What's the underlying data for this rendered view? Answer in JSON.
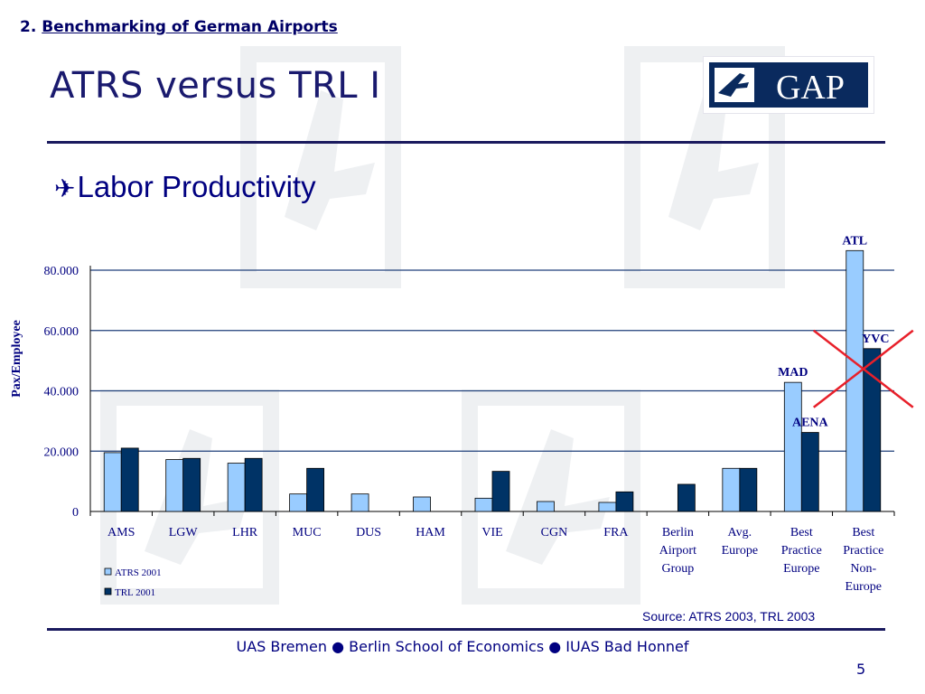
{
  "slide": {
    "section_number": "2.",
    "section_title": "Benchmarking of German Airports",
    "title": "ATRS versus TRL I",
    "bullet_icon": "airplane-icon",
    "bullet_text": "Labor Productivity",
    "source": "Source: ATRS 2003, TRL 2003",
    "footer": "UAS Bremen ● Berlin School of Economics ● IUAS Bad Honnef",
    "page_number": "5"
  },
  "logo": {
    "text": "GAP",
    "icon": "airplane-icon"
  },
  "colors": {
    "accent": "#000080",
    "series_atrs": "#99ccff",
    "series_trl": "#003366",
    "gridline": "#1f3f7a",
    "cross": "#e8202a"
  },
  "chart_data": {
    "type": "bar",
    "ylabel": "Pax/Employee",
    "xlabel": "",
    "ylim": [
      0,
      80000
    ],
    "yticks": [
      0,
      20000,
      40000,
      60000,
      80000
    ],
    "ytick_labels": [
      "0",
      "20.000",
      "40.000",
      "60.000",
      "80.000"
    ],
    "grid": true,
    "legend_position": "bottom-left",
    "categories": [
      "AMS",
      "LGW",
      "LHR",
      "MUC",
      "DUS",
      "HAM",
      "VIE",
      "CGN",
      "FRA",
      "Berlin Airport Group",
      "Avg. Europe",
      "Best Practice Europe",
      "Best Practice Non-Europe"
    ],
    "category_label_lines": [
      [
        "AMS"
      ],
      [
        "LGW"
      ],
      [
        "LHR"
      ],
      [
        "MUC"
      ],
      [
        "DUS"
      ],
      [
        "HAM"
      ],
      [
        "VIE"
      ],
      [
        "CGN"
      ],
      [
        "FRA"
      ],
      [
        "Berlin",
        "Airport",
        "Group"
      ],
      [
        "Avg.",
        "Europe"
      ],
      [
        "Best",
        "Practice",
        "Europe"
      ],
      [
        "Best",
        "Practice",
        "Non-",
        "Europe"
      ]
    ],
    "series": [
      {
        "name": "ATRS 2001",
        "color": "#99ccff",
        "values": [
          19500,
          17200,
          16000,
          5800,
          5800,
          4800,
          4400,
          3300,
          3000,
          null,
          14300,
          42800,
          86500
        ]
      },
      {
        "name": "TRL 2001",
        "color": "#003366",
        "values": [
          21000,
          17600,
          17600,
          14300,
          null,
          null,
          13300,
          null,
          6500,
          9000,
          14300,
          26200,
          54000
        ]
      }
    ],
    "bar_annotations": [
      {
        "category": "Best Practice Europe",
        "series": "ATRS 2001",
        "label": "MAD"
      },
      {
        "category": "Best Practice Europe",
        "series": "TRL 2001",
        "label": "AENA"
      },
      {
        "category": "Best Practice Non-Europe",
        "series": "ATRS 2001",
        "label": "ATL"
      },
      {
        "category": "Best Practice Non-Europe",
        "series": "TRL 2001",
        "label": "YVC"
      }
    ],
    "crossed_out": {
      "category": "Best Practice Non-Europe",
      "color": "#e8202a"
    }
  }
}
